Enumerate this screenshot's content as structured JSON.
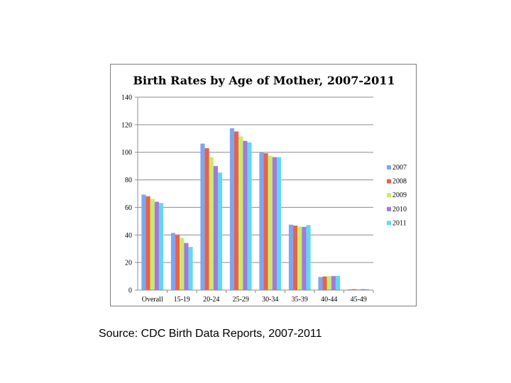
{
  "source_note": "Source: CDC Birth Data Reports, 2007-2011",
  "chart_data": {
    "type": "bar",
    "title": "Birth Rates by Age of Mother, 2007-2011",
    "xlabel": "",
    "ylabel": "",
    "ylim": [
      0,
      140
    ],
    "yticks": [
      0,
      20,
      40,
      60,
      80,
      100,
      120,
      140
    ],
    "grid": "horizontal",
    "legend_position": "right",
    "categories": [
      "Overall",
      "15-19",
      "20-24",
      "25-29",
      "30-34",
      "35-39",
      "40-44",
      "45-49"
    ],
    "series": [
      {
        "name": "2007",
        "color": "#7ea6f0",
        "values": [
          69.3,
          41.5,
          106.3,
          117.5,
          99.9,
          47.5,
          9.5,
          0.6
        ]
      },
      {
        "name": "2008",
        "color": "#e8614c",
        "values": [
          68.1,
          40.2,
          103.0,
          115.1,
          99.3,
          46.8,
          9.9,
          0.7
        ]
      },
      {
        "name": "2009",
        "color": "#c8ec6a",
        "values": [
          66.2,
          37.9,
          96.5,
          111.5,
          97.5,
          46.1,
          10.1,
          0.7
        ]
      },
      {
        "name": "2010",
        "color": "#a678d8",
        "values": [
          64.1,
          34.2,
          90.0,
          108.3,
          96.5,
          45.9,
          10.2,
          0.7
        ]
      },
      {
        "name": "2011",
        "color": "#62d8f0",
        "values": [
          63.2,
          31.3,
          85.3,
          107.2,
          96.5,
          47.2,
          10.3,
          0.7
        ]
      }
    ]
  }
}
